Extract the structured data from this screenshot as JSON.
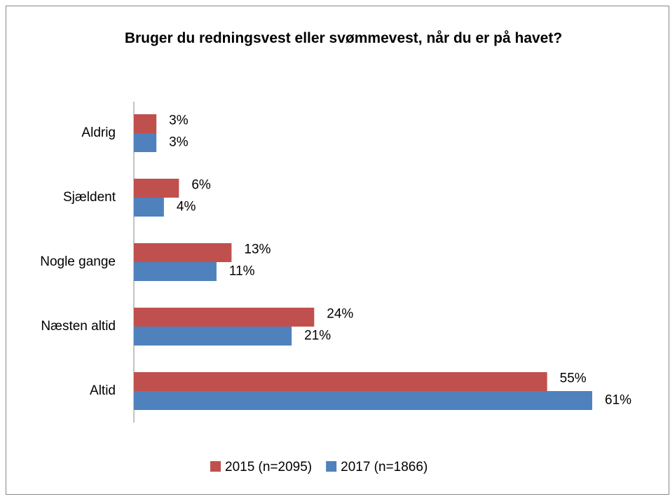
{
  "chart_data": {
    "type": "barh",
    "title": "Bruger du redningsvest eller svømmevest, når du er på havet?",
    "categories": [
      "Aldrig",
      "Sjældent",
      "Nogle gange",
      "Næsten altid",
      "Altid"
    ],
    "series": [
      {
        "name": "2015 (n=2095)",
        "color": "#c0504d",
        "values": [
          3,
          6,
          13,
          24,
          55
        ],
        "value_labels": [
          "3%",
          "6%",
          "13%",
          "24%",
          "55%"
        ]
      },
      {
        "name": "2017 (n=1866)",
        "color": "#4f81bd",
        "values": [
          3,
          4,
          11,
          21,
          61
        ],
        "value_labels": [
          "3%",
          "4%",
          "11%",
          "21%",
          "61%"
        ]
      }
    ],
    "xlim": [
      0,
      61
    ],
    "legend": "bottom"
  }
}
